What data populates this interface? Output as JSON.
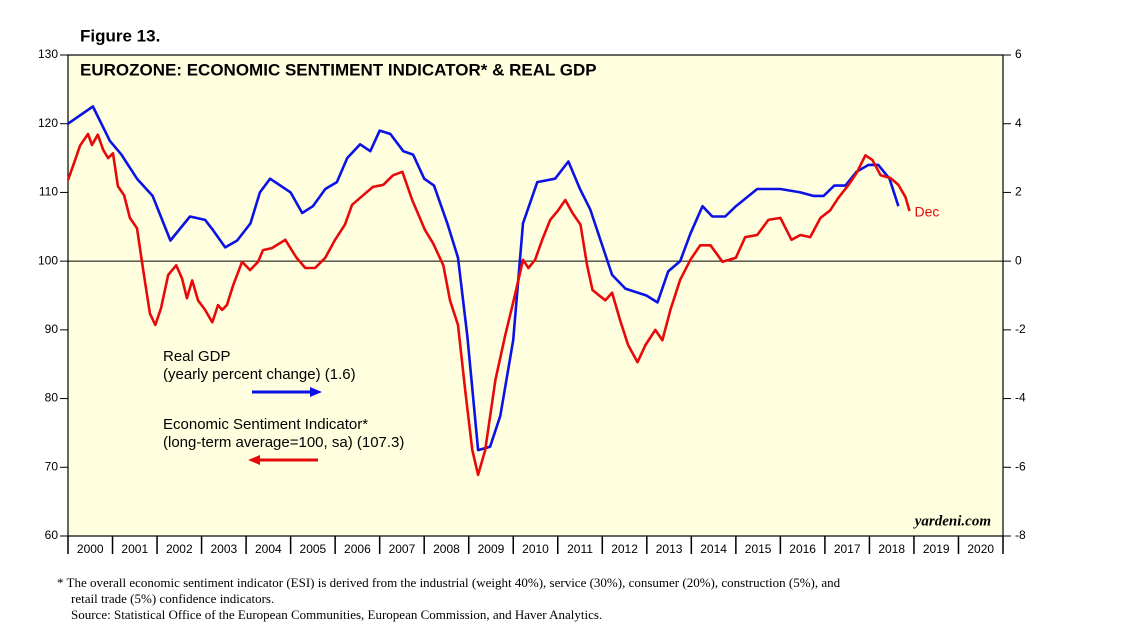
{
  "chart_data": {
    "type": "line",
    "figure_label": "Figure 13.",
    "title": "EUROZONE: ECONOMIC SENTIMENT INDICATOR* & REAL GDP",
    "annotation": "Dec",
    "watermark": "yardeni.com",
    "footnote": [
      "*  The overall economic sentiment indicator (ESI) is derived from the industrial (weight 40%), service (30%), consumer (20%), construction (5%), and",
      "retail trade (5%) confidence indicators.",
      "Source: Statistical Office of the European Communities, European Commission, and Haver Analytics."
    ],
    "xlim": [
      2000,
      2021
    ],
    "xticks": [
      2000,
      2001,
      2002,
      2003,
      2004,
      2005,
      2006,
      2007,
      2008,
      2009,
      2010,
      2011,
      2012,
      2013,
      2014,
      2015,
      2016,
      2017,
      2018,
      2019,
      2020
    ],
    "ylim": [
      60,
      130
    ],
    "yticks": [
      60,
      70,
      80,
      90,
      100,
      110,
      120,
      130
    ],
    "y2lim": [
      -8,
      6
    ],
    "y2ticks": [
      -8,
      -6,
      -4,
      -2,
      0,
      2,
      4,
      6
    ],
    "background": "#ffffe0",
    "series": [
      {
        "name": "Real GDP",
        "detail": "(yearly percent change) (1.6)",
        "color": "#0a12e6",
        "axis": "y2",
        "x": [
          2000.0,
          2000.56,
          2000.94,
          2001.2,
          2001.55,
          2001.9,
          2002.3,
          2002.74,
          2003.08,
          2003.26,
          2003.53,
          2003.8,
          2004.1,
          2004.31,
          2004.54,
          2005.0,
          2005.26,
          2005.5,
          2005.78,
          2006.04,
          2006.27,
          2006.56,
          2006.79,
          2007.0,
          2007.24,
          2007.53,
          2007.75,
          2008.0,
          2008.22,
          2008.52,
          2008.76,
          2008.97,
          2009.21,
          2009.48,
          2009.71,
          2010.0,
          2010.22,
          2010.54,
          2010.94,
          2011.24,
          2011.5,
          2011.73,
          2012.22,
          2012.52,
          2012.99,
          2013.24,
          2013.48,
          2013.75,
          2013.98,
          2014.25,
          2014.47,
          2014.76,
          2015.0,
          2015.48,
          2016.0,
          2016.45,
          2016.74,
          2016.97,
          2017.21,
          2017.46,
          2017.71,
          2017.98,
          2018.2,
          2018.45,
          2018.65
        ],
        "values": [
          4.0,
          4.5,
          3.5,
          3.1,
          2.4,
          1.9,
          0.6,
          1.3,
          1.2,
          0.9,
          0.4,
          0.6,
          1.1,
          2.0,
          2.4,
          2.0,
          1.4,
          1.6,
          2.1,
          2.3,
          3.0,
          3.4,
          3.2,
          3.8,
          3.7,
          3.2,
          3.1,
          2.4,
          2.2,
          1.1,
          0.1,
          -2.2,
          -5.5,
          -5.4,
          -4.5,
          -2.3,
          1.1,
          2.3,
          2.4,
          2.9,
          2.1,
          1.5,
          -0.4,
          -0.8,
          -1.0,
          -1.2,
          -0.3,
          0.0,
          0.8,
          1.6,
          1.3,
          1.3,
          1.6,
          2.1,
          2.1,
          2.0,
          1.9,
          1.9,
          2.2,
          2.2,
          2.6,
          2.8,
          2.8,
          2.4,
          1.6
        ]
      },
      {
        "name": "Economic Sentiment Indicator*",
        "detail": "(long-term average=100, sa) (107.3)",
        "color": "#e60a0a",
        "axis": "y",
        "x": [
          2000.0,
          2000.16,
          2000.27,
          2000.45,
          2000.54,
          2000.67,
          2000.79,
          2000.9,
          2001.01,
          2001.12,
          2001.26,
          2001.39,
          2001.55,
          2001.69,
          2001.84,
          2001.96,
          2002.09,
          2002.25,
          2002.43,
          2002.56,
          2002.67,
          2002.79,
          2002.92,
          2003.08,
          2003.24,
          2003.37,
          2003.46,
          2003.57,
          2003.71,
          2003.91,
          2004.09,
          2004.27,
          2004.38,
          2004.58,
          2004.88,
          2005.12,
          2005.33,
          2005.55,
          2005.78,
          2006.0,
          2006.22,
          2006.38,
          2006.63,
          2006.85,
          2007.08,
          2007.3,
          2007.51,
          2007.73,
          2008.02,
          2008.2,
          2008.43,
          2008.58,
          2008.76,
          2008.92,
          2009.08,
          2009.21,
          2009.37,
          2009.6,
          2009.82,
          2010.04,
          2010.22,
          2010.34,
          2010.49,
          2010.65,
          2010.83,
          2011.01,
          2011.17,
          2011.33,
          2011.51,
          2011.66,
          2011.78,
          2011.91,
          2012.07,
          2012.22,
          2012.4,
          2012.58,
          2012.79,
          2012.97,
          2013.19,
          2013.35,
          2013.53,
          2013.75,
          2013.98,
          2014.2,
          2014.43,
          2014.7,
          2015.0,
          2015.21,
          2015.48,
          2015.73,
          2016.0,
          2016.25,
          2016.45,
          2016.67,
          2016.9,
          2017.12,
          2017.3,
          2017.53,
          2017.71,
          2017.91,
          2018.07,
          2018.25,
          2018.47,
          2018.65,
          2018.81,
          2018.9
        ],
        "values": [
          111.8,
          114.7,
          116.8,
          118.5,
          116.9,
          118.4,
          116.2,
          115.0,
          115.7,
          110.9,
          109.6,
          106.3,
          104.8,
          98.7,
          92.4,
          90.7,
          93.2,
          98.0,
          99.4,
          97.5,
          94.6,
          97.2,
          94.3,
          92.9,
          91.1,
          93.6,
          92.9,
          93.6,
          96.5,
          99.9,
          98.7,
          99.9,
          101.6,
          101.9,
          103.1,
          100.6,
          99.0,
          99.0,
          100.5,
          103.1,
          105.3,
          108.2,
          109.6,
          110.8,
          111.1,
          112.5,
          113.0,
          108.9,
          104.5,
          102.6,
          99.4,
          94.3,
          90.7,
          81.2,
          72.5,
          68.9,
          72.5,
          82.7,
          89.2,
          95.1,
          100.2,
          99.0,
          100.2,
          103.1,
          106.0,
          107.4,
          108.9,
          107.0,
          105.3,
          99.4,
          95.8,
          95.1,
          94.3,
          95.4,
          91.4,
          87.8,
          85.3,
          87.8,
          90.0,
          88.5,
          92.9,
          97.3,
          100.2,
          102.3,
          102.3,
          99.9,
          100.5,
          103.5,
          103.8,
          106.0,
          106.3,
          103.1,
          103.8,
          103.5,
          106.3,
          107.4,
          109.2,
          111.1,
          112.8,
          115.4,
          114.7,
          112.5,
          112.1,
          111.1,
          109.3,
          107.3
        ]
      }
    ]
  }
}
